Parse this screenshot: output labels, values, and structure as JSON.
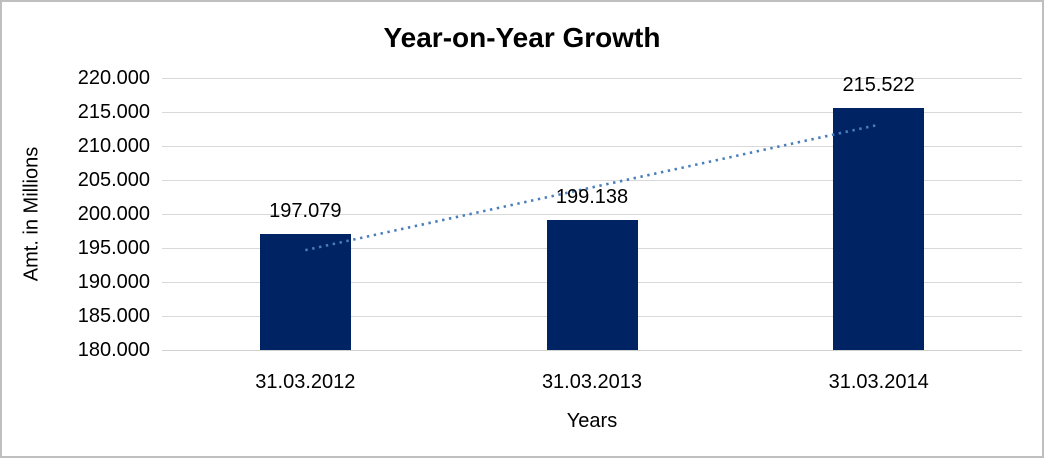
{
  "frame": {
    "background": "#ffffff",
    "border_color": "#bfbfbf"
  },
  "chart_data": {
    "type": "bar",
    "title": "Year-on-Year Growth",
    "xlabel": "Years",
    "ylabel": "Amt. in Millions",
    "categories": [
      "31.03.2012",
      "31.03.2013",
      "31.03.2014"
    ],
    "values": [
      197.079,
      199.138,
      215.522
    ],
    "value_labels": [
      "197.079",
      "199.138",
      "215.522"
    ],
    "ylim": [
      180,
      220
    ],
    "ytick_step": 5,
    "ytick_labels": [
      "180.000",
      "185.000",
      "190.000",
      "195.000",
      "200.000",
      "205.000",
      "210.000",
      "215.000",
      "220.000"
    ],
    "grid": true,
    "legend": "none",
    "bar_color": "#002364",
    "gridline_color": "#d9d9d9",
    "label_color": "#000000",
    "trendline": {
      "type": "linear",
      "style": "dotted",
      "color": "#4a7ebb",
      "start_value": 194.69,
      "end_value": 213.13
    }
  }
}
